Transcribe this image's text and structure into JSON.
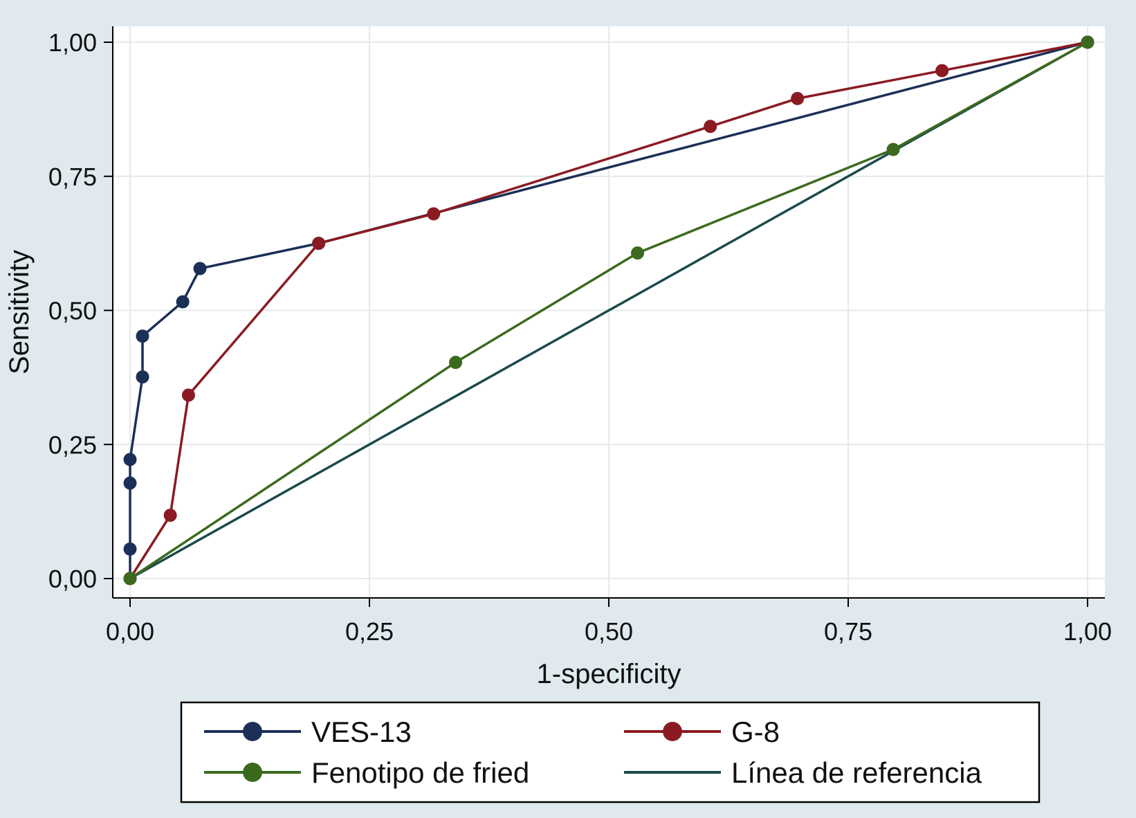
{
  "chart_data": {
    "type": "line",
    "xlabel": "1-specificity",
    "ylabel": "Sensitivity",
    "xlim": [
      0,
      1
    ],
    "ylim": [
      0,
      1
    ],
    "grid": true,
    "legend_position": "bottom",
    "x_ticks": [
      {
        "value": 0,
        "label": "0,00"
      },
      {
        "value": 0.25,
        "label": "0,25"
      },
      {
        "value": 0.5,
        "label": "0,50"
      },
      {
        "value": 0.75,
        "label": "0,75"
      },
      {
        "value": 1,
        "label": "1,00"
      }
    ],
    "y_ticks": [
      {
        "value": 0,
        "label": "0,00"
      },
      {
        "value": 0.25,
        "label": "0,25"
      },
      {
        "value": 0.5,
        "label": "0,50"
      },
      {
        "value": 0.75,
        "label": "0,75"
      },
      {
        "value": 1,
        "label": "1,00"
      }
    ],
    "series": [
      {
        "name": "VES-13",
        "color": "#1b2f57",
        "markers": true,
        "points": [
          [
            0,
            0
          ],
          [
            0,
            0.055
          ],
          [
            0,
            0.178
          ],
          [
            0,
            0.222
          ],
          [
            0.013,
            0.376
          ],
          [
            0.013,
            0.452
          ],
          [
            0.055,
            0.516
          ],
          [
            0.073,
            0.578
          ],
          [
            0.197,
            0.625
          ],
          [
            1,
            1
          ]
        ]
      },
      {
        "name": "G-8",
        "color": "#8a1b22",
        "markers": true,
        "points": [
          [
            0,
            0
          ],
          [
            0.042,
            0.118
          ],
          [
            0.061,
            0.342
          ],
          [
            0.197,
            0.625
          ],
          [
            0.317,
            0.68
          ],
          [
            0.606,
            0.843
          ],
          [
            0.697,
            0.895
          ],
          [
            0.848,
            0.947
          ],
          [
            1,
            1
          ]
        ]
      },
      {
        "name": "Fenotipo de fried",
        "color": "#3b6a1e",
        "markers": true,
        "points": [
          [
            0,
            0
          ],
          [
            0.34,
            0.403
          ],
          [
            0.53,
            0.607
          ],
          [
            0.797,
            0.8
          ],
          [
            1,
            1
          ]
        ]
      },
      {
        "name": "Línea de referencia",
        "color": "#1a4a4c",
        "markers": false,
        "points": [
          [
            0,
            0
          ],
          [
            1,
            1
          ]
        ]
      }
    ]
  }
}
